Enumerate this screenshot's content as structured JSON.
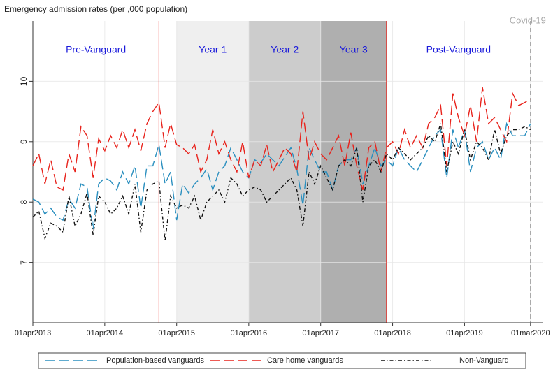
{
  "chart_data": {
    "type": "line",
    "title": "Emergency admission rates (per ,000 population)",
    "x": [
      "2013-04-01",
      "2013-05-01",
      "2013-06-01",
      "2013-07-01",
      "2013-08-01",
      "2013-09-01",
      "2013-10-01",
      "2013-11-01",
      "2013-12-01",
      "2014-01-01",
      "2014-02-01",
      "2014-03-01",
      "2014-04-01",
      "2014-05-01",
      "2014-06-01",
      "2014-07-01",
      "2014-08-01",
      "2014-09-01",
      "2014-10-01",
      "2014-11-01",
      "2014-12-01",
      "2015-01-01",
      "2015-02-01",
      "2015-03-01",
      "2015-04-01",
      "2015-05-01",
      "2015-06-01",
      "2015-07-01",
      "2015-08-01",
      "2015-09-01",
      "2015-10-01",
      "2015-11-01",
      "2015-12-01",
      "2016-01-01",
      "2016-02-01",
      "2016-03-01",
      "2016-04-01",
      "2016-05-01",
      "2016-06-01",
      "2016-07-01",
      "2016-08-01",
      "2016-09-01",
      "2016-10-01",
      "2016-11-01",
      "2016-12-01",
      "2017-01-01",
      "2017-02-01",
      "2017-03-01",
      "2017-04-01",
      "2017-05-01",
      "2017-06-01",
      "2017-07-01",
      "2017-08-01",
      "2017-09-01",
      "2017-10-01",
      "2017-11-01",
      "2017-12-01",
      "2018-01-01",
      "2018-02-01",
      "2018-03-01",
      "2018-04-01",
      "2018-05-01",
      "2018-06-01",
      "2018-07-01",
      "2018-08-01",
      "2018-09-01",
      "2018-10-01",
      "2018-11-01",
      "2018-12-01",
      "2019-01-01",
      "2019-02-01",
      "2019-03-01",
      "2019-04-01",
      "2019-05-01",
      "2019-06-01",
      "2019-07-01",
      "2019-08-01",
      "2019-09-01",
      "2019-10-01",
      "2019-11-01",
      "2019-12-01",
      "2020-01-01",
      "2020-02-01",
      "2020-03-01"
    ],
    "series": [
      {
        "name": "Population-based vanguards",
        "color": "#2a8fbf",
        "style": "dashed",
        "values": [
          8.05,
          8.0,
          7.8,
          7.9,
          7.75,
          7.7,
          8.05,
          7.9,
          8.3,
          8.25,
          7.55,
          8.3,
          8.4,
          8.35,
          8.2,
          8.5,
          8.3,
          8.6,
          7.9,
          8.6,
          8.6,
          8.95,
          8.3,
          8.5,
          7.7,
          8.3,
          8.15,
          8.3,
          8.4,
          8.55,
          8.2,
          8.5,
          8.6,
          8.9,
          8.7,
          8.5,
          8.4,
          8.7,
          8.65,
          8.8,
          8.7,
          8.6,
          8.75,
          8.9,
          8.55,
          7.95,
          8.9,
          8.7,
          8.5,
          8.5,
          8.2,
          8.6,
          8.7,
          8.7,
          8.9,
          8.3,
          8.6,
          8.9,
          8.6,
          8.7,
          8.6,
          8.9,
          8.7,
          8.6,
          8.5,
          8.7,
          8.9,
          9.1,
          9.2,
          8.4,
          9.2,
          8.9,
          9.2,
          8.5,
          8.9,
          9.0,
          8.7,
          8.9,
          8.7,
          9.3,
          9.1,
          9.1,
          9.1,
          9.3
        ]
      },
      {
        "name": "Care home vanguards",
        "color": "#e8231c",
        "style": "dashed",
        "values": [
          8.6,
          8.8,
          8.3,
          8.7,
          8.25,
          8.2,
          8.8,
          8.5,
          9.25,
          9.1,
          8.4,
          9.05,
          8.85,
          9.1,
          8.9,
          9.2,
          8.9,
          9.2,
          8.85,
          9.3,
          9.5,
          9.65,
          8.9,
          9.3,
          8.95,
          8.9,
          8.8,
          8.95,
          8.5,
          8.7,
          9.2,
          8.8,
          9.0,
          8.7,
          8.5,
          9.0,
          8.4,
          8.7,
          8.6,
          8.95,
          8.5,
          8.7,
          8.9,
          8.8,
          8.5,
          9.5,
          8.7,
          9.0,
          8.8,
          8.7,
          8.9,
          9.1,
          8.6,
          9.15,
          8.6,
          8.2,
          8.9,
          9.0,
          8.5,
          8.9,
          9.0,
          8.8,
          9.2,
          8.9,
          9.1,
          8.9,
          9.3,
          9.4,
          9.6,
          8.6,
          9.8,
          9.4,
          9.1,
          9.6,
          9.0,
          9.9,
          9.3,
          9.4,
          9.2,
          9.0,
          9.8,
          9.6,
          9.65,
          9.7
        ]
      },
      {
        "name": "Non-Vanguard",
        "color": "#111111",
        "style": "dashdot",
        "values": [
          7.75,
          7.85,
          7.4,
          7.65,
          7.6,
          7.5,
          8.1,
          7.6,
          7.8,
          8.15,
          7.45,
          8.1,
          8.0,
          7.8,
          7.9,
          8.1,
          7.8,
          8.3,
          7.5,
          8.2,
          8.3,
          8.35,
          7.35,
          8.1,
          7.9,
          7.95,
          7.9,
          8.1,
          7.7,
          8.0,
          8.1,
          8.2,
          8.0,
          8.4,
          8.3,
          8.1,
          8.2,
          8.25,
          8.2,
          8.0,
          8.1,
          8.2,
          8.3,
          8.4,
          8.2,
          7.6,
          8.5,
          8.3,
          8.6,
          8.4,
          8.2,
          8.6,
          8.7,
          8.6,
          8.9,
          8.0,
          8.6,
          8.7,
          8.5,
          8.8,
          8.7,
          8.9,
          8.8,
          8.7,
          8.8,
          8.9,
          9.1,
          9.0,
          9.3,
          8.5,
          9.0,
          8.8,
          9.2,
          8.7,
          9.0,
          8.9,
          8.7,
          9.2,
          8.8,
          9.1,
          9.2,
          9.2,
          9.25,
          9.2
        ]
      }
    ],
    "xlim": [
      "2013-04-01",
      "2020-05-01"
    ],
    "xticks": [
      {
        "value": "2013-04-01",
        "label": "01apr2013"
      },
      {
        "value": "2014-04-01",
        "label": "01apr2014"
      },
      {
        "value": "2015-04-01",
        "label": "01apr2015"
      },
      {
        "value": "2016-04-01",
        "label": "01apr2016"
      },
      {
        "value": "2017-04-01",
        "label": "01apr2017"
      },
      {
        "value": "2018-04-01",
        "label": "01apr2018"
      },
      {
        "value": "2019-04-01",
        "label": "01apr2019"
      },
      {
        "value": "2020-03-01",
        "label": "01mar2020"
      }
    ],
    "ylim": [
      6,
      11
    ],
    "yticks": [
      7,
      8,
      9,
      10
    ],
    "grid": true,
    "periods": [
      {
        "name": "Pre-Vanguard",
        "start": "2013-04-01",
        "end": "2015-01-01"
      },
      {
        "name": "Year 1",
        "start": "2015-04-01",
        "end": "2016-04-01",
        "color": "#efefef"
      },
      {
        "name": "Year 2",
        "start": "2016-04-01",
        "end": "2017-04-01",
        "color": "#cccccc"
      },
      {
        "name": "Year 3",
        "start": "2017-04-01",
        "end": "2018-03-01",
        "color": "#afafaf"
      },
      {
        "name": "Post-Vanguard",
        "start": "2018-03-01",
        "end": "2020-03-01"
      }
    ],
    "vlines": [
      {
        "x": "2015-01-01",
        "color": "#e8231c"
      },
      {
        "x": "2018-03-01",
        "color": "#e8231c"
      },
      {
        "x": "2020-03-01",
        "color": "#aaaaaa",
        "dashed": true,
        "label": "Covid-19"
      }
    ],
    "legend": "bottom"
  }
}
